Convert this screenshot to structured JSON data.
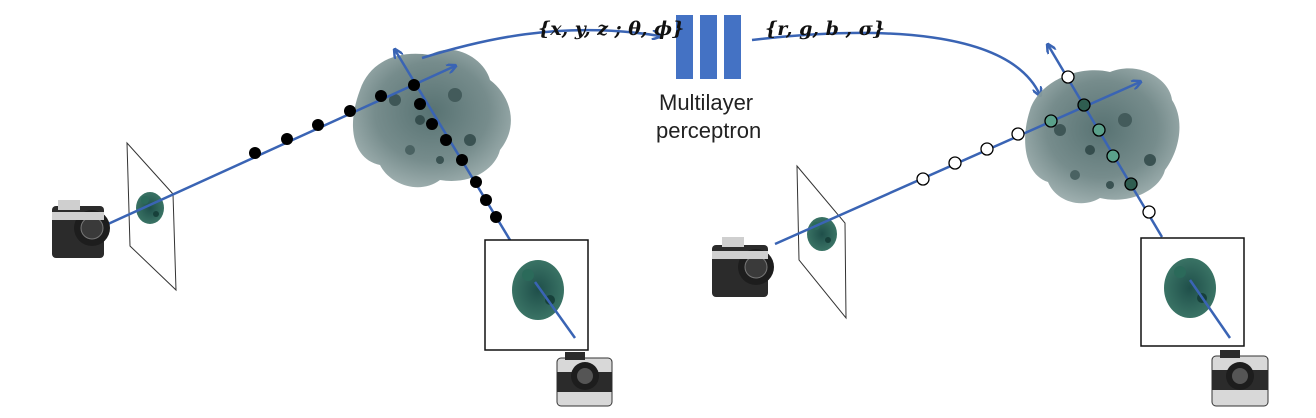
{
  "input_label": "{x, y, z ;  θ, ϕ}",
  "output_label": "{r, g, b , σ}",
  "mlp_label_line1": "Multilayer",
  "mlp_label_line2": "perceptron",
  "colors": {
    "ray": "#3a64b4",
    "mlp_block": "#4472c4",
    "coral": "#3c5a5a",
    "sample_filled_dark": "#2f5d50",
    "sample_filled_light": "#5aa08a",
    "sample_point": "#000000"
  },
  "icons": [
    "camera-icon",
    "coral-icon",
    "image-plane-icon",
    "mlp-icon"
  ]
}
